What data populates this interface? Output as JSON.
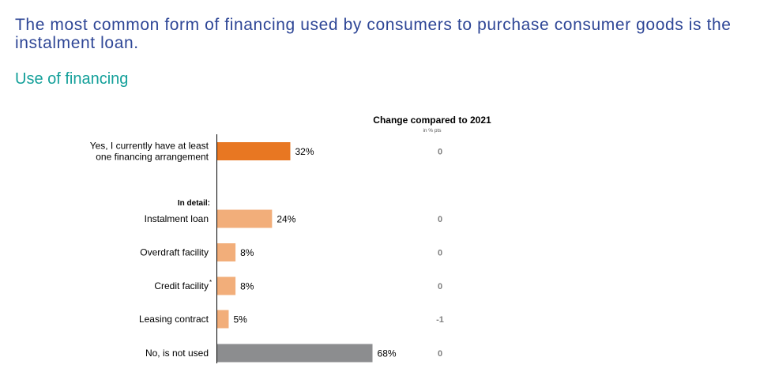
{
  "header": {
    "headline": "The most common form of financing used by consumers to purchase consumer goods is the instalment loan.",
    "subtitle": "Use of financing"
  },
  "chart_data": {
    "type": "bar",
    "orientation": "horizontal",
    "change_header": "Change compared to 2021",
    "change_unit": "in % pts",
    "section_label": "In detail:",
    "colors": {
      "primary": "#e87722",
      "detail": "#f2ae7a",
      "negative": "#8c8d8f",
      "change_text": "#7f7f7f"
    },
    "rows": [
      {
        "label_lines": [
          "Yes, I currently have at least",
          "one financing arrangement"
        ],
        "value": 32,
        "value_label": "32%",
        "change": "0",
        "color": "#e87722"
      },
      {
        "label_lines": [
          "Instalment loan"
        ],
        "value": 24,
        "value_label": "24%",
        "change": "0",
        "color": "#f2ae7a"
      },
      {
        "label_lines": [
          "Overdraft facility"
        ],
        "value": 8,
        "value_label": "8%",
        "change": "0",
        "color": "#f2ae7a"
      },
      {
        "label_lines": [
          "Credit facility"
        ],
        "footnote": "*",
        "value": 8,
        "value_label": "8%",
        "change": "0",
        "color": "#f2ae7a"
      },
      {
        "label_lines": [
          "Leasing contract"
        ],
        "value": 5,
        "value_label": "5%",
        "change": "-1",
        "color": "#f2ae7a"
      },
      {
        "label_lines": [
          "No, is not used"
        ],
        "value": 68,
        "value_label": "68%",
        "change": "0",
        "color": "#8c8d8f"
      }
    ]
  }
}
